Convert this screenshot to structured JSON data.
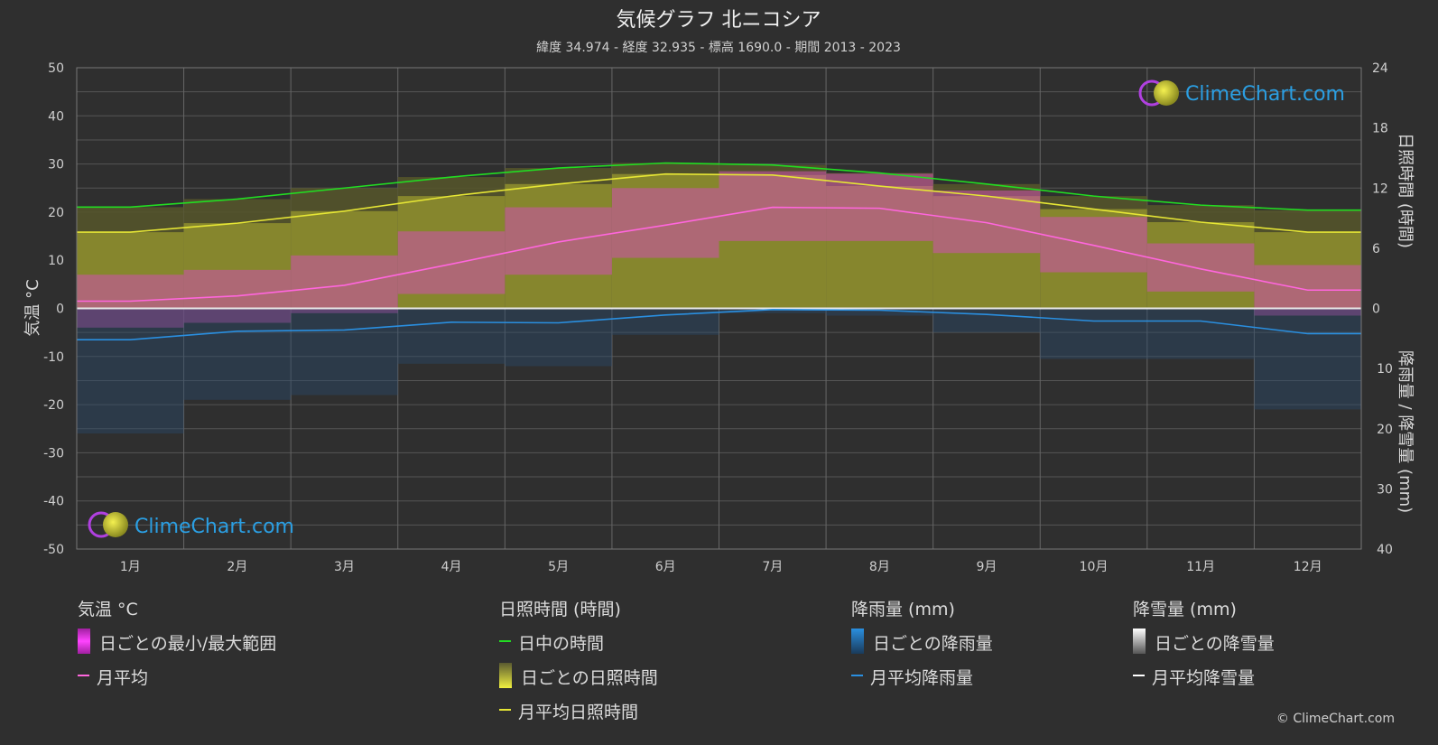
{
  "title": "気候グラフ 北ニコシア",
  "subtitle": "緯度 34.974 - 経度 32.935 - 標高 1690.0 - 期間 2013 - 2023",
  "logo_text": "ClimeChart.com",
  "copyright": "© ClimeChart.com",
  "colors": {
    "background": "#2f2f2f",
    "daylight": "#22dd22",
    "sunshine_avg": "#e6e635",
    "temp_avg": "#ff66dd",
    "rain_avg": "#2a8fe0",
    "snow_avg": "#ffffff",
    "temp_range": "#e040c0",
    "sunshine_daily": "#9a9a3a",
    "rain_daily": "#2a6aa0"
  },
  "chart_data": {
    "type": "line",
    "categories": [
      "1月",
      "2月",
      "3月",
      "4月",
      "5月",
      "6月",
      "7月",
      "8月",
      "9月",
      "10月",
      "11月",
      "12月"
    ],
    "left_axis": {
      "label": "気温 °C",
      "ylim": [
        -50,
        50
      ],
      "ticks": [
        "50",
        "40",
        "30",
        "20",
        "10",
        "0",
        "-10",
        "-20",
        "-30",
        "-40",
        "-50"
      ]
    },
    "right_axis_top": {
      "label": "日照時間 (時間)",
      "ylim": [
        0,
        24
      ],
      "ticks": [
        "24",
        "18",
        "12",
        "6",
        "0"
      ]
    },
    "right_axis_bottom": {
      "label": "降雨量 / 降雪量 (mm)",
      "ylim": [
        0,
        40
      ],
      "ticks": [
        "10",
        "20",
        "30",
        "40"
      ]
    },
    "grid": true,
    "series": [
      {
        "name": "日中の時間",
        "axis": "sunshine",
        "values": [
          10.1,
          10.9,
          12.0,
          13.1,
          14.0,
          14.5,
          14.3,
          13.5,
          12.4,
          11.2,
          10.3,
          9.8
        ]
      },
      {
        "name": "月平均日照時間",
        "axis": "sunshine",
        "values": [
          7.6,
          8.5,
          9.7,
          11.2,
          12.4,
          13.4,
          13.3,
          12.2,
          11.2,
          9.9,
          8.6,
          7.6
        ]
      },
      {
        "name": "月平均",
        "axis": "temperature",
        "values": [
          1.5,
          2.6,
          4.8,
          9.2,
          13.8,
          17.3,
          21.0,
          20.8,
          17.8,
          13.1,
          8.2,
          3.8
        ]
      },
      {
        "name": "月平均降雨量",
        "axis": "precipitation",
        "values": [
          5.2,
          3.8,
          3.6,
          2.3,
          2.4,
          1.1,
          0.2,
          0.3,
          1.0,
          2.1,
          2.1,
          4.2
        ]
      },
      {
        "name": "月平均降雪量",
        "axis": "precipitation",
        "values": [
          0,
          0,
          0,
          0,
          0,
          0,
          0,
          0,
          0,
          0,
          0,
          0
        ]
      }
    ],
    "temperature_range": {
      "min": [
        -4.0,
        -3.0,
        -1.0,
        3.0,
        7.0,
        10.5,
        14.0,
        14.0,
        11.5,
        7.5,
        3.5,
        -1.5
      ],
      "max": [
        7.0,
        8.0,
        11.0,
        16.0,
        21.0,
        25.0,
        28.5,
        28.0,
        24.5,
        19.0,
        13.5,
        9.0
      ]
    },
    "legend": {
      "groups": [
        {
          "title": "気温 °C",
          "items": [
            "日ごとの最小/最大範囲",
            "月平均"
          ]
        },
        {
          "title": "日照時間 (時間)",
          "items": [
            "日中の時間",
            "日ごとの日照時間",
            "月平均日照時間"
          ]
        },
        {
          "title": "降雨量 (mm)",
          "items": [
            "日ごとの降雨量",
            "月平均降雨量"
          ]
        },
        {
          "title": "降雪量 (mm)",
          "items": [
            "日ごとの降雪量",
            "月平均降雪量"
          ]
        }
      ]
    }
  }
}
